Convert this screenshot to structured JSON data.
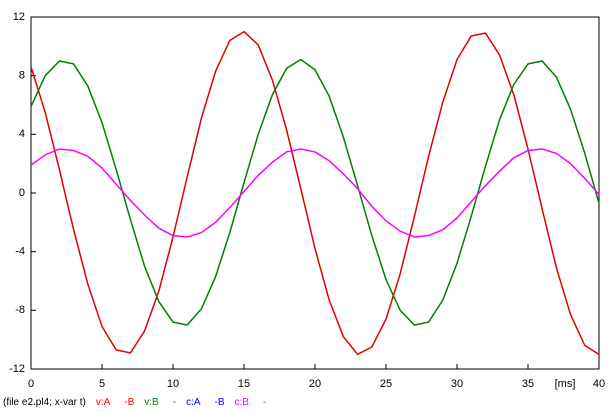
{
  "chart_data": {
    "type": "line",
    "x_unit_label": "[ms]",
    "legend_items": [
      {
        "text": "(file e2.pl4; x-var t)",
        "color": "#000000"
      },
      {
        "text": "v:A",
        "color": "#ff0000"
      },
      {
        "text": "-B",
        "color": "#ff0000"
      },
      {
        "text": "v:B",
        "color": "#008000"
      },
      {
        "text": "-",
        "color": "#008000"
      },
      {
        "text": "c:A",
        "color": "#0000ff"
      },
      {
        "text": "-B",
        "color": "#0000ff"
      },
      {
        "text": "c:B",
        "color": "#ff00ff"
      },
      {
        "text": "-",
        "color": "#ff00ff"
      }
    ],
    "x": [
      0,
      1,
      2,
      3,
      4,
      5,
      6,
      7,
      8,
      9,
      10,
      11,
      12,
      13,
      14,
      15,
      16,
      17,
      18,
      19,
      20,
      21,
      22,
      23,
      24,
      25,
      26,
      27,
      28,
      29,
      30,
      31,
      32,
      33,
      34,
      35,
      36,
      37,
      38,
      39,
      40
    ],
    "series": [
      {
        "color": "#e00000",
        "values": [
          8.6,
          5.5,
          1.6,
          -2.5,
          -6.2,
          -9.1,
          -10.7,
          -10.9,
          -9.4,
          -6.7,
          -3.0,
          1.1,
          5.1,
          8.3,
          10.4,
          11.0,
          10.1,
          7.7,
          4.3,
          0.3,
          -3.8,
          -7.3,
          -9.8,
          -11.0,
          -10.5,
          -8.6,
          -5.5,
          -1.6,
          2.5,
          6.2,
          9.1,
          10.7,
          10.9,
          9.4,
          6.7,
          3.0,
          -1.1,
          -5.1,
          -8.3,
          -10.4,
          -11.0
        ]
      },
      {
        "color": "#008000",
        "values": [
          5.9,
          8.0,
          9.0,
          8.8,
          7.3,
          4.8,
          1.6,
          -1.8,
          -5.0,
          -7.4,
          -8.8,
          -9.0,
          -7.9,
          -5.7,
          -2.7,
          0.7,
          4.0,
          6.7,
          8.5,
          9.1,
          8.4,
          6.6,
          3.8,
          0.5,
          -2.9,
          -5.9,
          -8.0,
          -9.0,
          -8.8,
          -7.3,
          -4.8,
          -1.6,
          1.8,
          5.0,
          7.4,
          8.8,
          9.0,
          7.9,
          5.7,
          2.7,
          -0.7
        ]
      },
      {
        "color": "#ff00ff",
        "values": [
          1.9,
          2.6,
          3.0,
          2.9,
          2.5,
          1.7,
          0.6,
          -0.5,
          -1.5,
          -2.4,
          -2.9,
          -3.0,
          -2.7,
          -2.0,
          -1.0,
          0.1,
          1.2,
          2.1,
          2.8,
          3.0,
          2.8,
          2.2,
          1.3,
          0.3,
          -0.9,
          -1.9,
          -2.6,
          -3.0,
          -2.9,
          -2.5,
          -1.7,
          -0.6,
          0.5,
          1.5,
          2.4,
          2.9,
          3.0,
          2.7,
          2.0,
          1.0,
          -0.1
        ]
      }
    ],
    "xlim": [
      0,
      40
    ],
    "xticks": [
      0,
      5,
      10,
      15,
      20,
      25,
      30,
      35,
      40
    ],
    "ylim": [
      -12,
      12
    ],
    "yticks": [
      -12,
      -8,
      -4,
      0,
      4,
      8,
      12
    ]
  }
}
